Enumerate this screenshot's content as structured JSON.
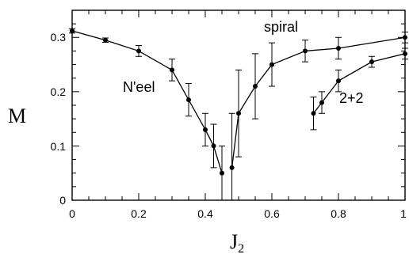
{
  "chart_data": {
    "type": "scatter",
    "title": "",
    "xlabel": "J",
    "xlabel_sub": "2",
    "ylabel": "M",
    "xlim": [
      0,
      1
    ],
    "ylim": [
      0,
      0.35
    ],
    "x_ticks": [
      "0",
      "0.2",
      "0.4",
      "0.6",
      "0.8",
      "1"
    ],
    "y_ticks": [
      "0",
      "0.1",
      "0.2",
      "0.3"
    ],
    "grid": false,
    "annotations": [
      "N'eel",
      "spiral",
      "2+2"
    ],
    "series": [
      {
        "x": [
          0,
          0.1,
          0.2,
          0.3,
          0.35,
          0.4,
          0.425,
          0.45
        ],
        "y": [
          0.312,
          0.295,
          0.275,
          0.24,
          0.185,
          0.13,
          0.1,
          0.05
        ],
        "err": [
          0.004,
          0.004,
          0.01,
          0.02,
          0.03,
          0.03,
          0.04,
          0.05
        ]
      },
      {
        "x": [
          0.48,
          0.5,
          0.55,
          0.6,
          0.7,
          0.8,
          1.0
        ],
        "y": [
          0.06,
          0.16,
          0.21,
          0.25,
          0.275,
          0.28,
          0.3
        ],
        "err": [
          0.1,
          0.08,
          0.06,
          0.04,
          0.02,
          0.02,
          0.01
        ]
      },
      {
        "x": [
          0.725,
          0.75,
          0.8,
          0.9,
          1.0
        ],
        "y": [
          0.16,
          0.18,
          0.22,
          0.255,
          0.27
        ],
        "err": [
          0.03,
          0.02,
          0.02,
          0.01,
          0.01
        ]
      }
    ]
  }
}
